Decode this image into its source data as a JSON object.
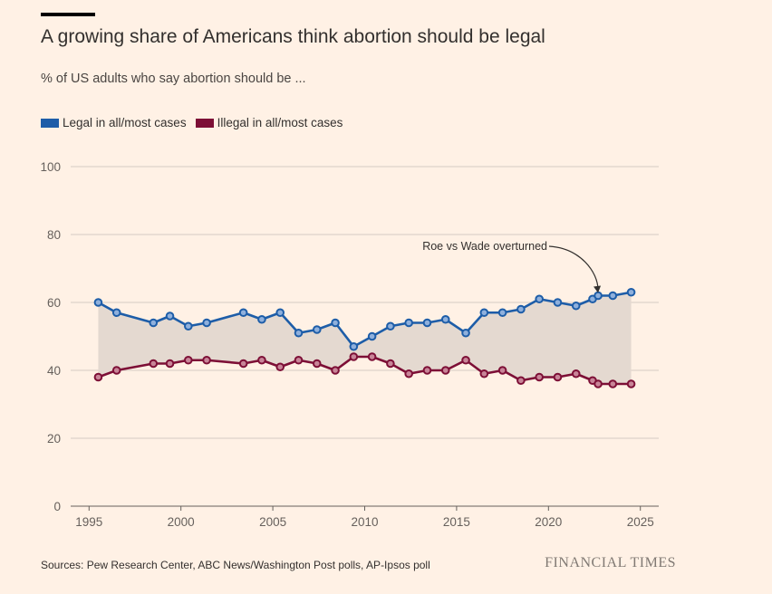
{
  "title": "A growing share of Americans think abortion should be legal",
  "subtitle": "% of US adults who say abortion should be ...",
  "source": "Sources: Pew Research Center, ABC News/Washington Post polls, AP-Ipsos poll",
  "brand": "FINANCIAL TIMES",
  "colors": {
    "background": "#fff1e5",
    "legal": "#1d5da8",
    "illegal": "#7d0f36",
    "fill_between": "#e4d9d0",
    "marker_fill": "#8fb0dc",
    "marker_fill_illegal": "#c88598"
  },
  "chart_data": {
    "type": "line",
    "xlim": [
      1994,
      2026
    ],
    "ylim": [
      0,
      100
    ],
    "x_ticks": [
      1995,
      2000,
      2005,
      2010,
      2015,
      2020,
      2025
    ],
    "y_ticks": [
      0,
      20,
      40,
      60,
      80,
      100
    ],
    "grid": true,
    "legend_position": "top-left",
    "shaded_between_series": true,
    "series": [
      {
        "name": "Legal in all/most cases",
        "color": "#1d5da8",
        "x": [
          1995.5,
          1996.5,
          1998.5,
          1999.4,
          2000.4,
          2001.4,
          2003.4,
          2004.4,
          2005.4,
          2006.4,
          2007.4,
          2008.4,
          2009.4,
          2010.4,
          2011.4,
          2012.4,
          2013.4,
          2014.4,
          2015.5,
          2016.5,
          2017.5,
          2018.5,
          2019.5,
          2020.5,
          2021.5,
          2022.4,
          2022.7,
          2023.5,
          2024.5
        ],
        "values": [
          60,
          57,
          54,
          56,
          53,
          54,
          57,
          55,
          57,
          51,
          52,
          54,
          47,
          50,
          53,
          54,
          54,
          55,
          51,
          57,
          57,
          58,
          61,
          60,
          59,
          61,
          62,
          62,
          63
        ]
      },
      {
        "name": "Illegal in all/most cases",
        "color": "#7d0f36",
        "x": [
          1995.5,
          1996.5,
          1998.5,
          1999.4,
          2000.4,
          2001.4,
          2003.4,
          2004.4,
          2005.4,
          2006.4,
          2007.4,
          2008.4,
          2009.4,
          2010.4,
          2011.4,
          2012.4,
          2013.4,
          2014.4,
          2015.5,
          2016.5,
          2017.5,
          2018.5,
          2019.5,
          2020.5,
          2021.5,
          2022.4,
          2022.7,
          2023.5,
          2024.5
        ],
        "values": [
          38,
          40,
          42,
          42,
          43,
          43,
          42,
          43,
          41,
          43,
          42,
          40,
          44,
          44,
          42,
          39,
          40,
          40,
          43,
          39,
          40,
          37,
          38,
          38,
          39,
          37,
          36,
          36,
          36
        ]
      }
    ],
    "annotations": [
      {
        "text": "Roe vs Wade overturned",
        "x": 2022.6,
        "y": 62
      }
    ]
  }
}
